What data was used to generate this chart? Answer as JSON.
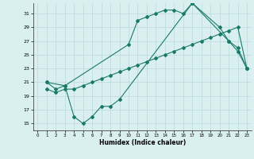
{
  "xlabel": "Humidex (Indice chaleur)",
  "bg_color": "#daf0f0",
  "grid_color": "#b8dada",
  "line_color": "#1a7a6a",
  "xlim": [
    -0.5,
    23.5
  ],
  "ylim": [
    14,
    32.5
  ],
  "yticks": [
    15,
    17,
    19,
    21,
    23,
    25,
    27,
    29,
    31
  ],
  "xticks": [
    0,
    1,
    2,
    3,
    4,
    5,
    6,
    7,
    8,
    9,
    10,
    11,
    12,
    13,
    14,
    15,
    16,
    17,
    18,
    19,
    20,
    21,
    22,
    23
  ],
  "line1_x": [
    1,
    2,
    3,
    10,
    11,
    12,
    13,
    14,
    15,
    16,
    17,
    21,
    22,
    23
  ],
  "line1_y": [
    21,
    20,
    20.5,
    26.5,
    30,
    30.5,
    31,
    31.5,
    31.5,
    31,
    32.5,
    27,
    26,
    23
  ],
  "line2_x": [
    1,
    2,
    3,
    4,
    5,
    6,
    7,
    8,
    9,
    10,
    11,
    12,
    13,
    14,
    15,
    16,
    17,
    18,
    19,
    20,
    21,
    22,
    23
  ],
  "line2_y": [
    20,
    19.5,
    20,
    20,
    20.5,
    21,
    21.5,
    22,
    22.5,
    23,
    23.5,
    24,
    24.5,
    25,
    25.5,
    26,
    26.5,
    27,
    27.5,
    28,
    28.5,
    29,
    23
  ],
  "line3_x": [
    1,
    3,
    4,
    5,
    6,
    7,
    8,
    9,
    17,
    20,
    21,
    22,
    23
  ],
  "line3_y": [
    21,
    20.5,
    16,
    15,
    16,
    17.5,
    17.5,
    18.5,
    32.5,
    29,
    27,
    25.5,
    23
  ]
}
